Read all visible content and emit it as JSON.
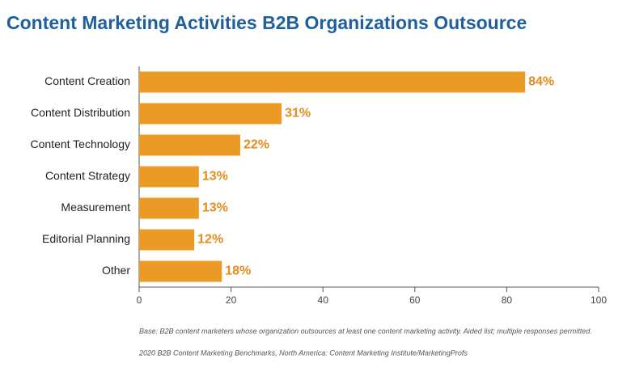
{
  "chart_data": {
    "type": "bar",
    "orientation": "horizontal",
    "title": "Content Marketing Activities B2B Organizations Outsource",
    "categories": [
      "Content Creation",
      "Content Distribution",
      "Content Technology",
      "Content Strategy",
      "Measurement",
      "Editorial Planning",
      "Other"
    ],
    "values": [
      84,
      31,
      22,
      13,
      13,
      12,
      18
    ],
    "value_labels": [
      "84%",
      "31%",
      "22%",
      "13%",
      "13%",
      "12%",
      "18%"
    ],
    "color": "#eb9a26",
    "xlim": [
      0,
      100
    ],
    "xticks": [
      0,
      20,
      40,
      60,
      80,
      100
    ],
    "notes": [
      "Base: B2B content marketers whose organization outsources at least one content marketing activity. Aided list; multiple responses permitted.",
      "2020 B2B Content Marketing Benchmarks, North America: Content Marketing Institute/MarketingProfs"
    ]
  }
}
